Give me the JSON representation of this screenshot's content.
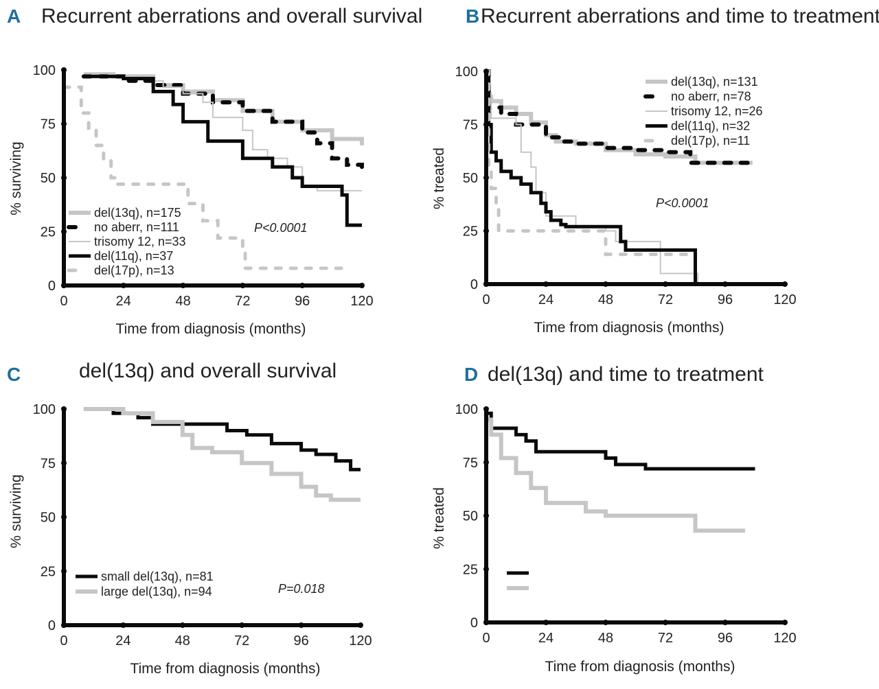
{
  "chart_data": [
    {
      "panel": "A",
      "type": "line",
      "step": true,
      "title": "Recurrent aberrations and overall survival",
      "xlabel": "Time from diagnosis (months)",
      "ylabel": "% surviving",
      "xlim": [
        0,
        120
      ],
      "ylim": [
        0,
        100
      ],
      "xticks": [
        "0",
        "24",
        "48",
        "72",
        "96",
        "120"
      ],
      "yticks": [
        "0",
        "25",
        "50",
        "75",
        "100"
      ],
      "annotation": "P<0.0001",
      "legend": "bottom-left",
      "grid": false,
      "series": [
        {
          "name": "del(13q), n=175",
          "style": "thick-gray",
          "x": [
            8,
            20,
            36,
            48,
            60,
            72,
            84,
            96,
            108,
            120
          ],
          "y": [
            98,
            97,
            93,
            90,
            86,
            81,
            76,
            72,
            68,
            65
          ]
        },
        {
          "name": "no aberr, n=111",
          "style": "dashed-black",
          "x": [
            8,
            24,
            36,
            48,
            60,
            72,
            84,
            96,
            102,
            108,
            114,
            120
          ],
          "y": [
            97,
            95,
            93,
            89,
            85,
            81,
            76,
            71,
            66,
            59,
            56,
            55
          ]
        },
        {
          "name": "trisomy 12, n=33",
          "style": "thin-gray",
          "x": [
            8,
            24,
            36,
            40,
            48,
            56,
            60,
            72,
            76,
            82,
            90,
            96,
            102,
            120
          ],
          "y": [
            97,
            97,
            95,
            92,
            89,
            85,
            78,
            72,
            63,
            59,
            55,
            46,
            44,
            44
          ]
        },
        {
          "name": "del(11q), n=37",
          "style": "thick-black",
          "x": [
            8,
            24,
            36,
            44,
            48,
            56,
            58,
            72,
            78,
            84,
            92,
            96,
            110,
            112,
            114,
            120
          ],
          "y": [
            97,
            96,
            90,
            84,
            76,
            76,
            67,
            59,
            59,
            55,
            50,
            46,
            46,
            42,
            28,
            28
          ]
        },
        {
          "name": "del(17p), n=13",
          "style": "dashed-gray",
          "x": [
            0,
            6,
            7,
            10,
            13,
            16,
            19,
            21,
            48,
            50,
            56,
            62,
            72,
            73,
            113
          ],
          "y": [
            92,
            92,
            80,
            73,
            65,
            58,
            50,
            47,
            47,
            38,
            30,
            22,
            17,
            8,
            8
          ]
        }
      ]
    },
    {
      "panel": "B",
      "type": "line",
      "step": true,
      "title": "Recurrent aberrations and time to treatment",
      "xlabel": "Time from diagnosis (months)",
      "ylabel": "% treated",
      "xlim": [
        0,
        120
      ],
      "ylim": [
        0,
        100
      ],
      "xticks": [
        "0",
        "24",
        "48",
        "72",
        "96",
        "120"
      ],
      "yticks": [
        "0",
        "25",
        "50",
        "75",
        "100"
      ],
      "annotation": "P<0.0001",
      "legend": "top-right",
      "grid": false,
      "series": [
        {
          "name": "del(13q), n=131",
          "style": "thick-gray",
          "x": [
            0,
            1,
            2,
            6,
            12,
            18,
            24,
            28,
            36,
            48,
            60,
            72,
            84,
            107
          ],
          "y": [
            100,
            88,
            86,
            83,
            80,
            76,
            70,
            67,
            66,
            63,
            61,
            60,
            57,
            57
          ]
        },
        {
          "name": "no aberr, n=78",
          "style": "dashed-black",
          "x": [
            0,
            1,
            6,
            12,
            24,
            30,
            36,
            48,
            60,
            72,
            82,
            106
          ],
          "y": [
            100,
            83,
            80,
            75,
            69,
            67,
            66,
            64,
            63,
            62,
            57,
            57
          ]
        },
        {
          "name": "trisomy 12, n=26",
          "style": "thin-gray",
          "x": [
            0,
            1,
            2,
            12,
            14,
            18,
            20,
            24,
            36,
            48,
            52,
            58,
            70,
            85,
            85
          ],
          "y": [
            100,
            90,
            78,
            75,
            62,
            55,
            43,
            32,
            27,
            25,
            20,
            20,
            5,
            5,
            0
          ]
        },
        {
          "name": "del(11q), n=32",
          "style": "thick-black",
          "x": [
            0,
            1,
            2,
            4,
            6,
            10,
            14,
            18,
            22,
            24,
            26,
            30,
            32,
            50,
            54,
            56,
            84,
            84
          ],
          "y": [
            100,
            75,
            62,
            58,
            53,
            50,
            47,
            43,
            38,
            34,
            30,
            28,
            27,
            27,
            20,
            16,
            16,
            0
          ]
        },
        {
          "name": "del(17p), n=11",
          "style": "dashed-gray",
          "x": [
            0,
            1,
            2,
            4,
            5,
            46,
            48,
            84
          ],
          "y": [
            100,
            55,
            45,
            35,
            25,
            25,
            14,
            14
          ]
        }
      ]
    },
    {
      "panel": "C",
      "type": "line",
      "step": true,
      "title": "del(13q) and overall survival",
      "xlabel": "Time from diagnosis (months)",
      "ylabel": "% surviving",
      "xlim": [
        0,
        120
      ],
      "ylim": [
        0,
        100
      ],
      "xticks": [
        "0",
        "24",
        "48",
        "72",
        "96",
        "120"
      ],
      "yticks": [
        "0",
        "25",
        "50",
        "75",
        "100"
      ],
      "annotation": "P=0.018",
      "legend": "bottom-left",
      "grid": false,
      "series": [
        {
          "name": "small del(13q), n=81",
          "style": "thick-black",
          "x": [
            12,
            20,
            30,
            36,
            60,
            66,
            74,
            84,
            96,
            102,
            110,
            116,
            120
          ],
          "y": [
            100,
            98,
            96,
            93,
            93,
            90,
            88,
            84,
            81,
            79,
            76,
            72,
            72
          ]
        },
        {
          "name": "large del(13q), n=94",
          "style": "thick-gray",
          "x": [
            8,
            24,
            36,
            48,
            52,
            60,
            72,
            84,
            96,
            102,
            108,
            120
          ],
          "y": [
            100,
            98,
            94,
            88,
            82,
            80,
            75,
            70,
            64,
            60,
            58,
            58
          ]
        }
      ]
    },
    {
      "panel": "D",
      "type": "line",
      "step": true,
      "title": "del(13q) and time to treatment",
      "xlabel": "Time from diagnosis (months)",
      "ylabel": "% treated",
      "xlim": [
        0,
        120
      ],
      "ylim": [
        0,
        100
      ],
      "xticks": [
        "0",
        "24",
        "48",
        "72",
        "96",
        "120"
      ],
      "yticks": [
        "0",
        "25",
        "50",
        "75",
        "100"
      ],
      "legend": "bottom-left",
      "grid": false,
      "series": [
        {
          "style": "thick-black",
          "x": [
            0,
            2,
            10,
            12,
            16,
            20,
            40,
            48,
            52,
            64,
            108
          ],
          "y": [
            98,
            91,
            91,
            88,
            85,
            80,
            80,
            77,
            74,
            72,
            72
          ]
        },
        {
          "style": "thick-gray",
          "x": [
            0,
            2,
            6,
            12,
            18,
            24,
            40,
            48,
            84,
            84,
            104
          ],
          "y": [
            95,
            88,
            77,
            70,
            63,
            56,
            52,
            50,
            49,
            43,
            43
          ]
        }
      ]
    }
  ],
  "colors": {
    "black": "#0a0a0a",
    "gray": "#c6c6c6",
    "letter": "#1f6e9e"
  }
}
